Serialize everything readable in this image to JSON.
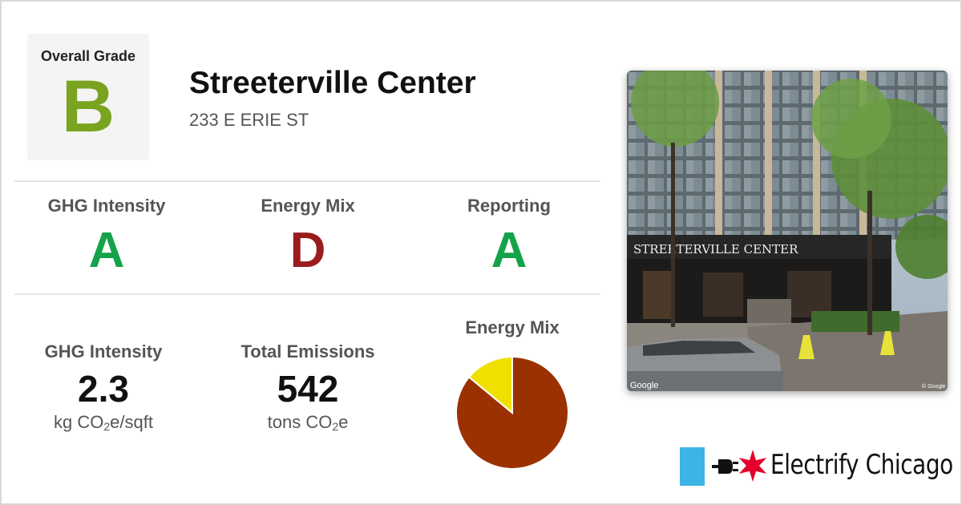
{
  "overall": {
    "label": "Overall Grade",
    "grade": "B",
    "color": "#7aa41f"
  },
  "building": {
    "name": "Streeterville Center",
    "address": "233 E ERIE ST"
  },
  "grades": [
    {
      "label": "GHG Intensity",
      "grade": "A",
      "color": "#14a34a"
    },
    {
      "label": "Energy Mix",
      "grade": "D",
      "color": "#9b1c1c"
    },
    {
      "label": "Reporting",
      "grade": "A",
      "color": "#14a34a"
    }
  ],
  "stats": {
    "ghg": {
      "label": "GHG Intensity",
      "value": "2.3",
      "unit_prefix": "kg CO",
      "unit_sub": "2",
      "unit_suffix": "e/sqft"
    },
    "total": {
      "label": "Total Emissions",
      "value": "542",
      "unit_prefix": "tons CO",
      "unit_sub": "2",
      "unit_suffix": "e"
    }
  },
  "chart_data": {
    "type": "pie",
    "title": "Energy Mix",
    "slices": [
      {
        "value": 0.86,
        "color": "#9b3100"
      },
      {
        "value": 0.14,
        "color": "#f0e000"
      }
    ]
  },
  "photo": {
    "sign_text": "STREETERVILLE CENTER",
    "watermark_left": "Google",
    "watermark_right": "© Google"
  },
  "brand": {
    "name": "Electrify Chicago",
    "bar_color": "#3db3e6",
    "star_color": "#e4002b",
    "icons": [
      "plug-icon",
      "chicago-star-icon"
    ]
  }
}
